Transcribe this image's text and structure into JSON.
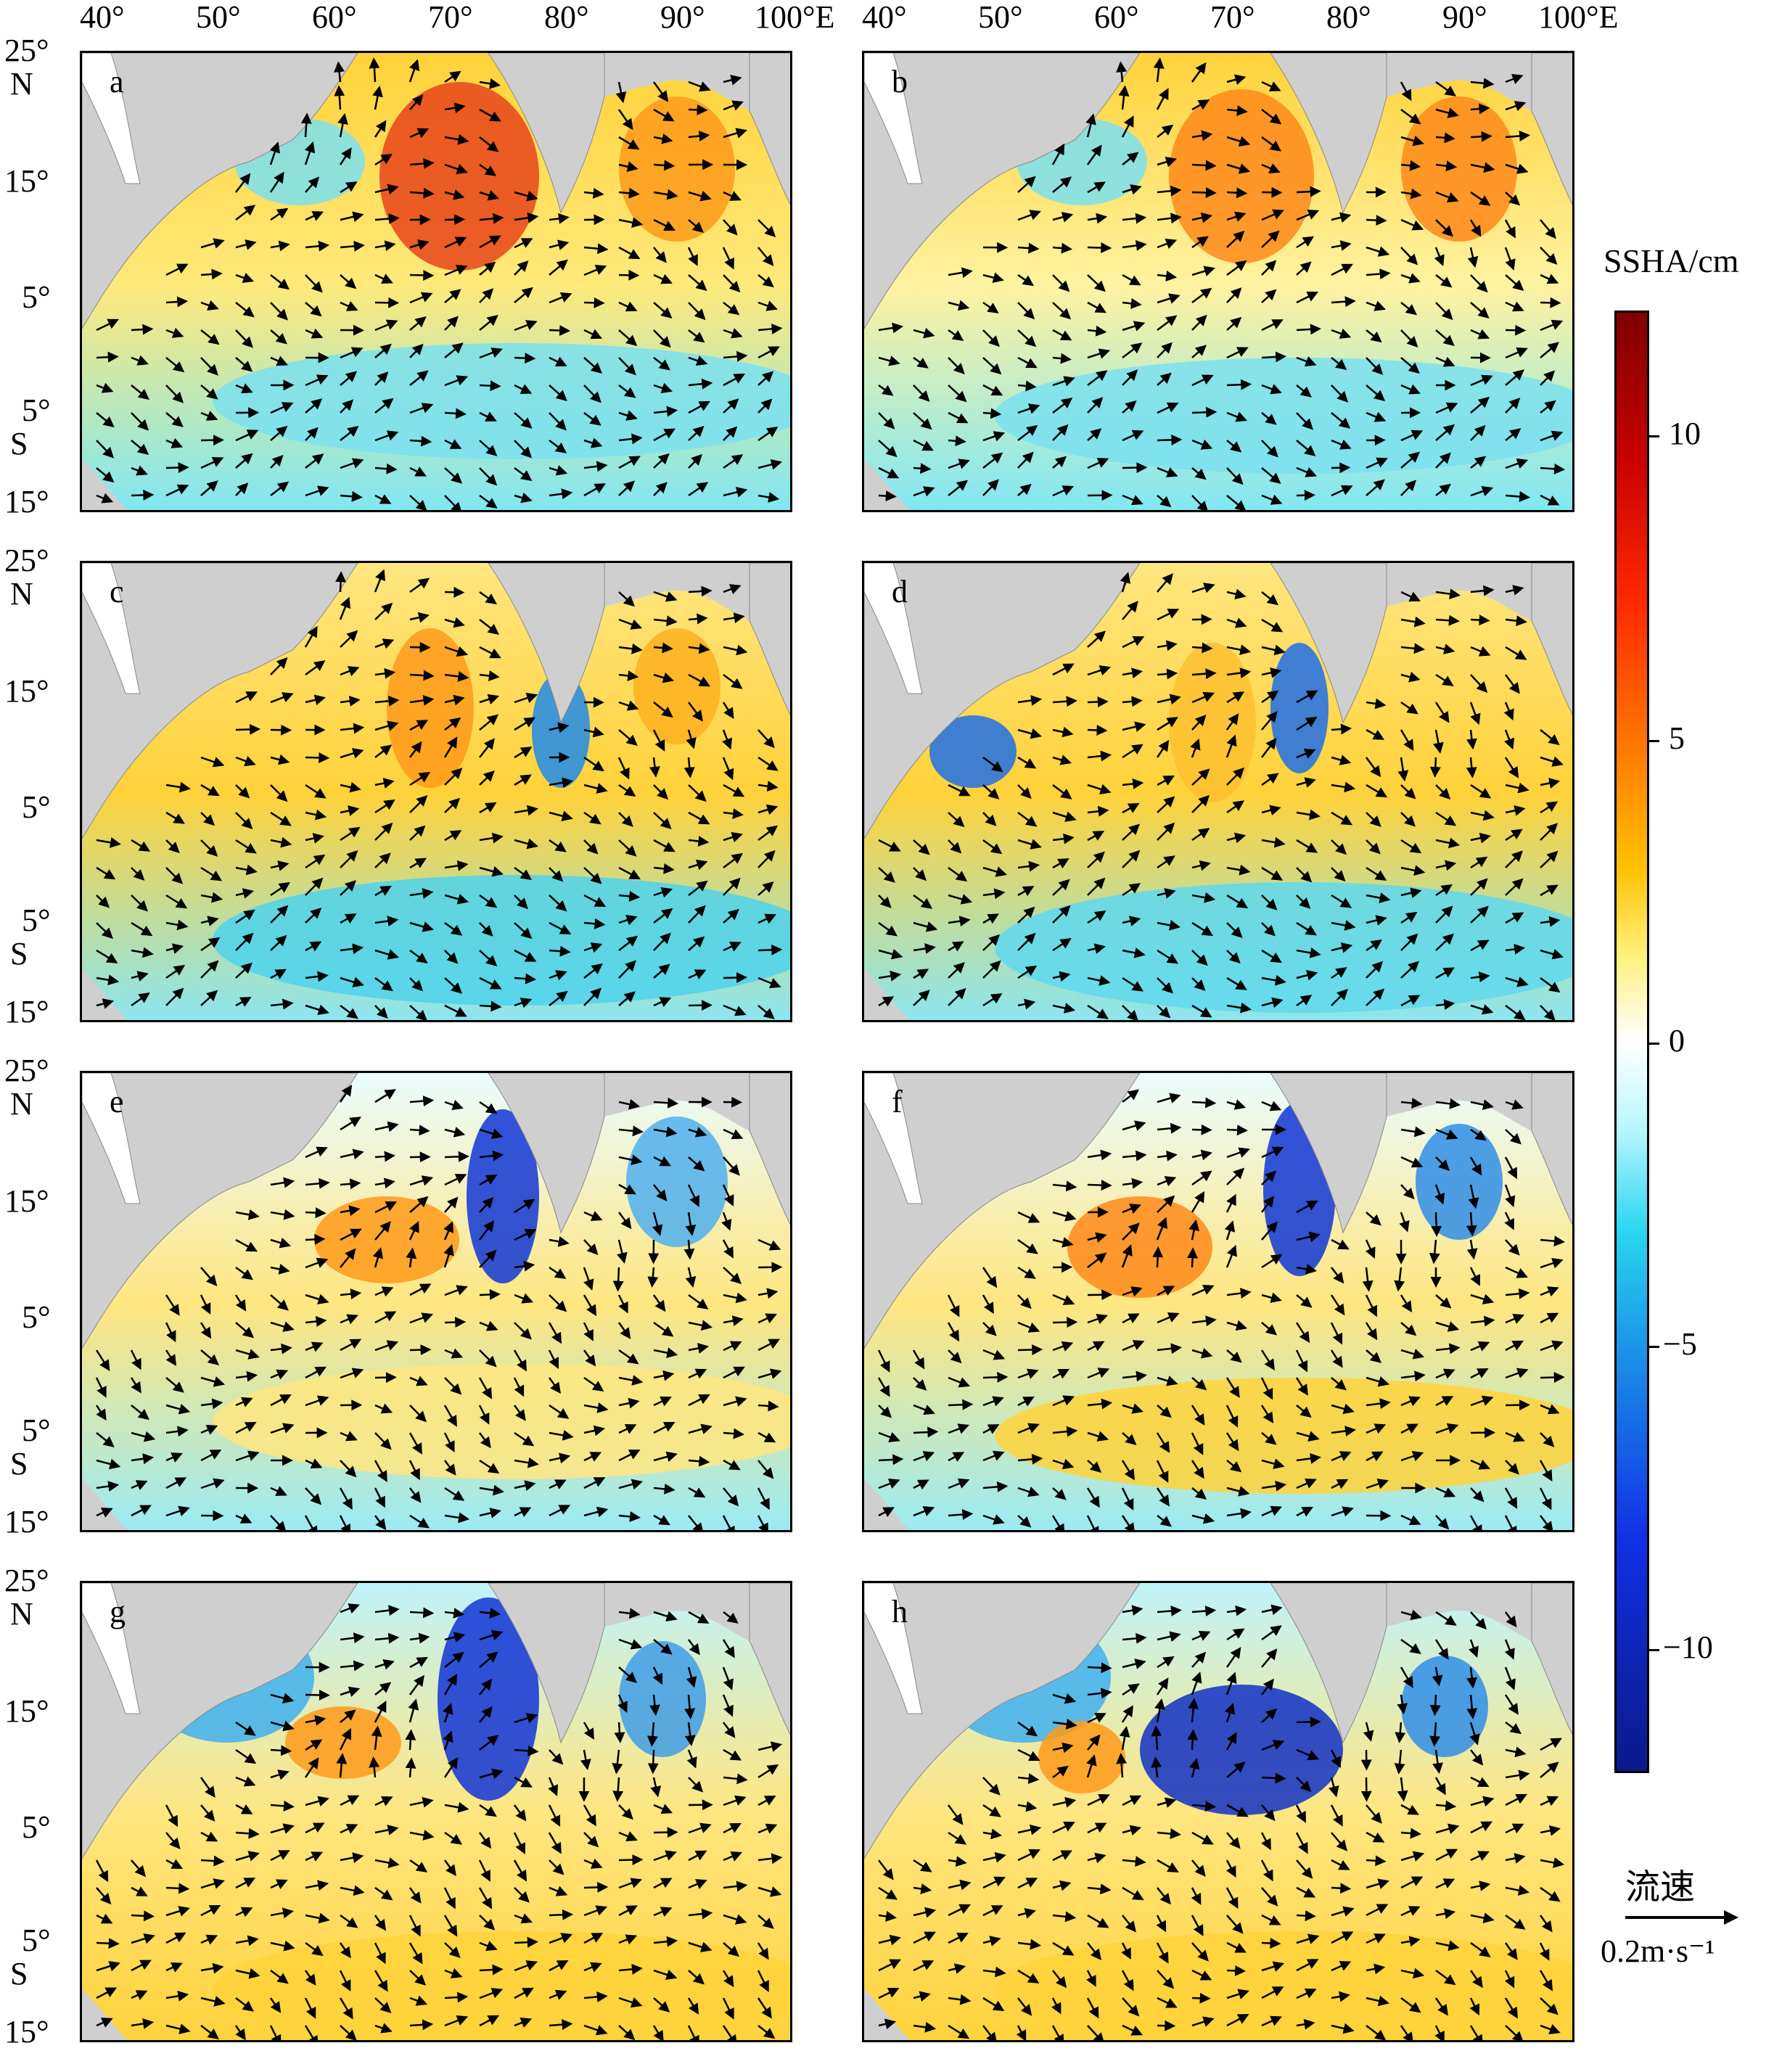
{
  "axes": {
    "lon_labels": [
      "40°",
      "50°",
      "60°",
      "70°",
      "80°",
      "90°",
      "100°E"
    ],
    "lat_labels": [
      "25°",
      "N",
      "15°",
      "5°",
      "5°",
      "S",
      "15°"
    ]
  },
  "panels": [
    {
      "label": "a"
    },
    {
      "label": "b"
    },
    {
      "label": "c"
    },
    {
      "label": "d"
    },
    {
      "label": "e"
    },
    {
      "label": "f"
    },
    {
      "label": "g"
    },
    {
      "label": "h"
    }
  ],
  "colorbar": {
    "title": "SSHA/cm",
    "ticks": [
      "10",
      "5",
      "0",
      "−5",
      "−10"
    ],
    "colors": [
      "#7f0000",
      "#ff2a00",
      "#ffc000",
      "#ffffff",
      "#29d6f0",
      "#1030e6",
      "#0a1a8a"
    ]
  },
  "vector_key": {
    "title": "流速",
    "label": "0.2m·s⁻¹"
  }
}
